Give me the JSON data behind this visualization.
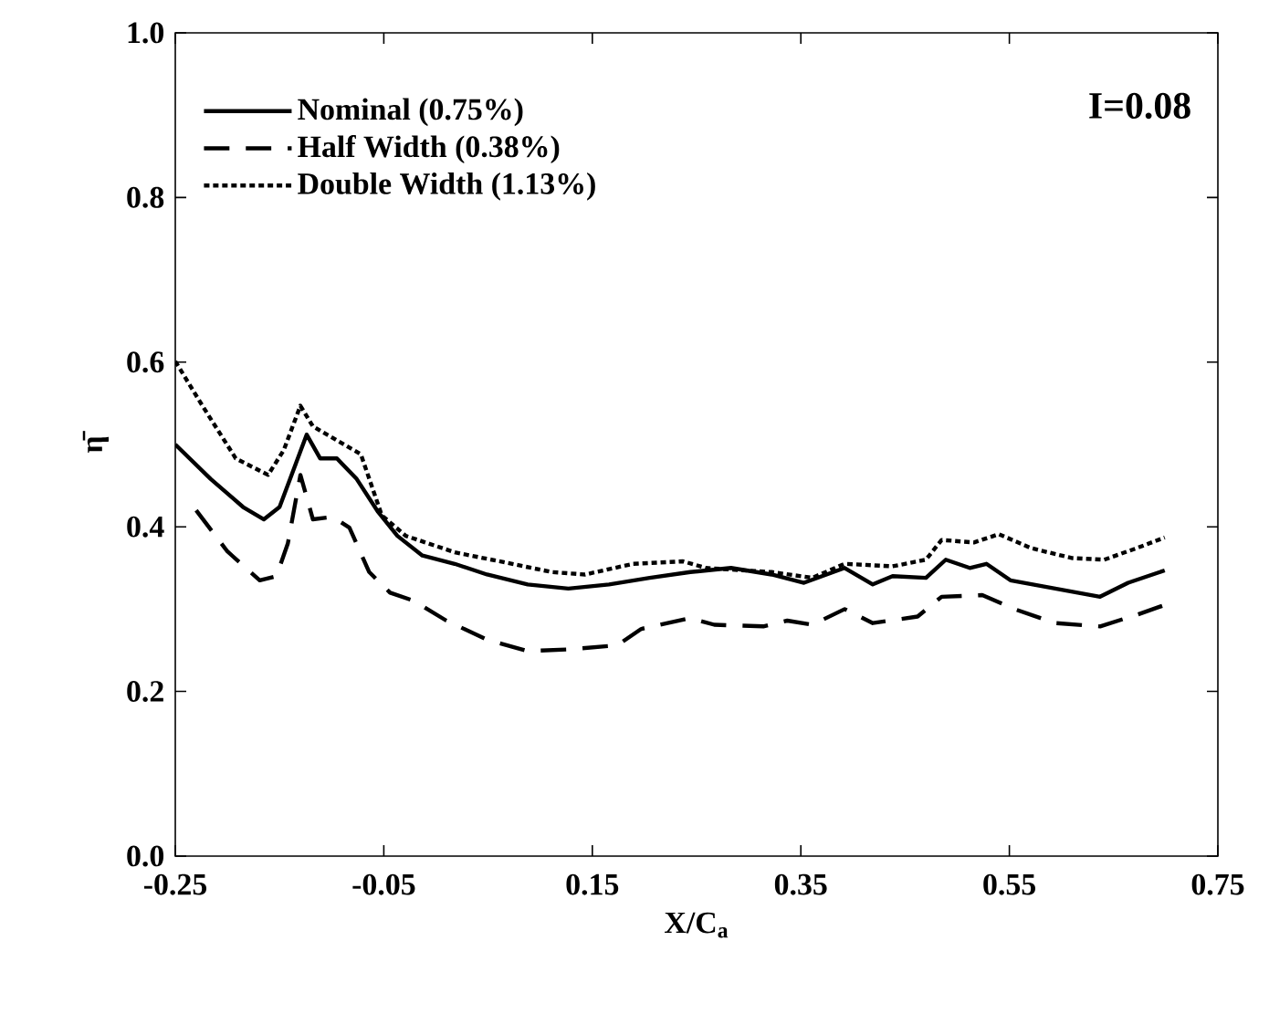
{
  "chart_data": {
    "type": "line",
    "xlabel": "X/C$_{a}$",
    "ylabel": "η̄",
    "annotations": [
      "I=0.08"
    ],
    "xlim": [
      -0.25,
      0.75
    ],
    "ylim": [
      0,
      1.0
    ],
    "xticks": [
      -0.25,
      -0.05,
      0.15,
      0.35,
      0.55,
      0.75
    ],
    "yticks": [
      {
        "value": 0,
        "label": "0.0"
      },
      0.2,
      0.4,
      0.6,
      0.8,
      {
        "value": 1,
        "label": "1.0"
      }
    ],
    "grid": false,
    "legend": "top left",
    "marker": "none",
    "series": [
      {
        "name": "Nominal (0.75%)",
        "color": "#000000",
        "line_style": "solid",
        "x": [
          -0.25,
          -0.216,
          -0.185,
          -0.165,
          -0.15,
          -0.134,
          -0.124,
          -0.111,
          -0.095,
          -0.076,
          -0.056,
          -0.037,
          -0.013,
          0.018,
          0.049,
          0.088,
          0.127,
          0.166,
          0.205,
          0.244,
          0.283,
          0.322,
          0.353,
          0.392,
          0.419,
          0.438,
          0.47,
          0.489,
          0.512,
          0.528,
          0.551,
          0.594,
          0.637,
          0.664,
          0.699
        ],
        "values": [
          0.5,
          0.458,
          0.424,
          0.409,
          0.424,
          0.478,
          0.512,
          0.483,
          0.483,
          0.458,
          0.419,
          0.389,
          0.365,
          0.355,
          0.342,
          0.33,
          0.325,
          0.33,
          0.338,
          0.345,
          0.35,
          0.342,
          0.332,
          0.35,
          0.33,
          0.34,
          0.338,
          0.36,
          0.35,
          0.355,
          0.335,
          0.325,
          0.315,
          0.332,
          0.347
        ]
      },
      {
        "name": "Half Width (0.38%)",
        "color": "#000000",
        "line_style": "dashed",
        "x": [
          -0.23,
          -0.2,
          -0.169,
          -0.153,
          -0.142,
          -0.13,
          -0.118,
          -0.099,
          -0.083,
          -0.064,
          -0.044,
          -0.021,
          0.01,
          0.049,
          0.088,
          0.127,
          0.174,
          0.197,
          0.244,
          0.267,
          0.314,
          0.337,
          0.361,
          0.392,
          0.419,
          0.462,
          0.485,
          0.524,
          0.555,
          0.594,
          0.637,
          0.672,
          0.699
        ],
        "values": [
          0.42,
          0.37,
          0.335,
          0.34,
          0.38,
          0.463,
          0.409,
          0.412,
          0.399,
          0.345,
          0.32,
          0.31,
          0.286,
          0.263,
          0.249,
          0.251,
          0.256,
          0.276,
          0.289,
          0.281,
          0.279,
          0.286,
          0.281,
          0.3,
          0.283,
          0.291,
          0.315,
          0.317,
          0.3,
          0.283,
          0.279,
          0.293,
          0.305
        ]
      },
      {
        "name": "Double Width (1.13%)",
        "color": "#000000",
        "line_style": "dotted",
        "x": [
          -0.25,
          -0.224,
          -0.192,
          -0.161,
          -0.146,
          -0.13,
          -0.118,
          -0.091,
          -0.072,
          -0.052,
          -0.029,
          0.018,
          0.065,
          0.111,
          0.143,
          0.189,
          0.237,
          0.259,
          0.322,
          0.361,
          0.392,
          0.438,
          0.47,
          0.485,
          0.516,
          0.54,
          0.571,
          0.61,
          0.641,
          0.672,
          0.699
        ],
        "values": [
          0.601,
          0.547,
          0.483,
          0.463,
          0.493,
          0.547,
          0.522,
          0.502,
          0.488,
          0.414,
          0.389,
          0.369,
          0.357,
          0.345,
          0.342,
          0.355,
          0.358,
          0.35,
          0.345,
          0.338,
          0.355,
          0.352,
          0.36,
          0.384,
          0.381,
          0.391,
          0.374,
          0.362,
          0.36,
          0.374,
          0.387
        ]
      }
    ]
  }
}
